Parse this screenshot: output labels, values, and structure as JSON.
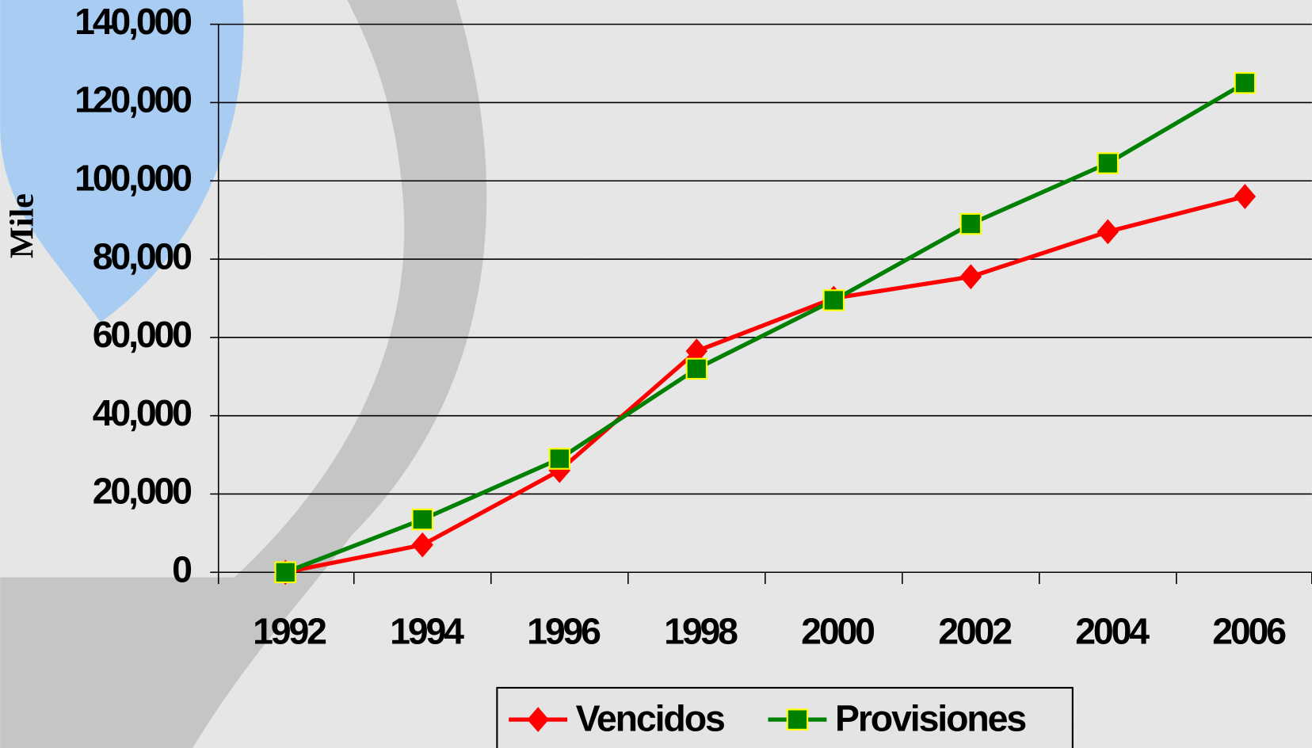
{
  "chart_data": {
    "type": "line",
    "y_label": "Mile",
    "categories": [
      "1992",
      "1994",
      "1996",
      "1998",
      "2000",
      "2002",
      "2004",
      "2006"
    ],
    "series": [
      {
        "name": "Vencidos",
        "color": "#ff0000",
        "values": [
          0,
          7000,
          26000,
          56500,
          70000,
          75500,
          87000,
          96000
        ]
      },
      {
        "name": "Provisiones",
        "color": "#008000",
        "values": [
          0,
          13500,
          29000,
          52000,
          69500,
          89000,
          104500,
          125000
        ]
      }
    ],
    "ylim": [
      0,
      140000
    ],
    "yticks": [
      0,
      {
        "value": 20000,
        "label": "20,000"
      },
      {
        "value": 40000,
        "label": "40,000"
      },
      {
        "value": 60000,
        "label": "60,000"
      },
      {
        "value": 80000,
        "label": "80,000"
      },
      {
        "value": 100000,
        "label": "100,000"
      },
      {
        "value": 120000,
        "label": "120,000"
      },
      {
        "value": 140000,
        "label": "140,000"
      }
    ],
    "grid": true
  }
}
